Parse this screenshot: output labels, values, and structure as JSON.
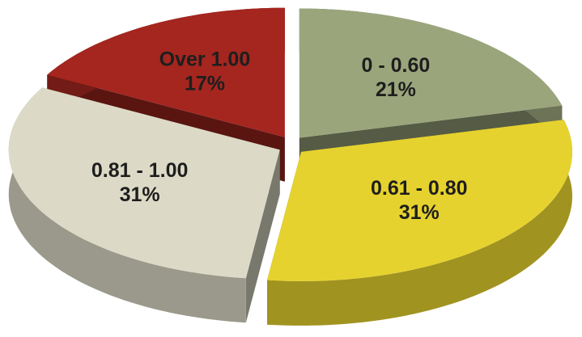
{
  "chart_data": {
    "type": "pie3d",
    "categories": [
      "0 - 0.60",
      "0.61 - 0.80",
      "0.81 - 1.00",
      "Over 1.00"
    ],
    "values": [
      21,
      31,
      31,
      17
    ],
    "value_labels": [
      "21%",
      "31%",
      "31%",
      "17%"
    ],
    "colors": [
      "#9ba57c",
      "#e6d22e",
      "#dcdac6",
      "#a4261f"
    ]
  }
}
